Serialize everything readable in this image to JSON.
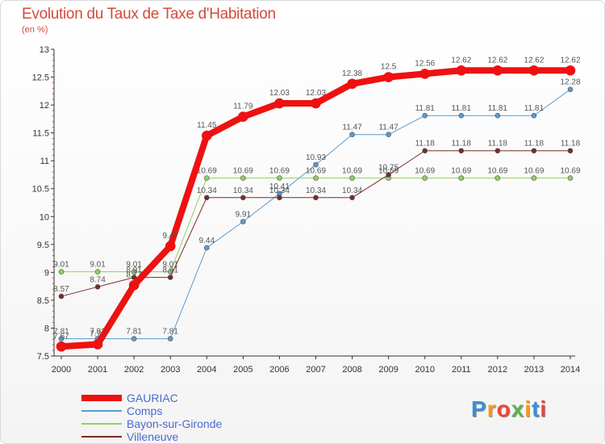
{
  "header": {
    "title": "Evolution du Taux de Taxe d'Habitation",
    "subtitle": "(en %)"
  },
  "logo": {
    "letters": [
      "P",
      "r",
      "o",
      "x",
      "i",
      "t",
      "i"
    ],
    "colors": [
      "#3a8fd8",
      "#f39a1e",
      "#e8473a",
      "#5ab64a",
      "#f39a1e",
      "#3a8fd8",
      "#e8473a"
    ]
  },
  "chart_data": {
    "type": "line",
    "x": [
      "2000",
      "2001",
      "2002",
      "2003",
      "2004",
      "2005",
      "2006",
      "2007",
      "2008",
      "2009",
      "2010",
      "2011",
      "2012",
      "2013",
      "2014"
    ],
    "ylim": [
      7.5,
      13
    ],
    "yticks": [
      "7.5",
      "8",
      "8.5",
      "9",
      "9.5",
      "10",
      "10.5",
      "11",
      "11.5",
      "12",
      "12.5",
      "13"
    ],
    "grid": false,
    "legend_position": "bottom-left",
    "series": [
      {
        "name": "GAURIAC",
        "color": "#ee1111",
        "width": 8,
        "values": [
          7.67,
          7.71,
          8.77,
          9.47,
          11.45,
          11.79,
          12.03,
          12.03,
          12.38,
          12.5,
          12.56,
          12.62,
          12.62,
          12.62,
          12.62
        ],
        "labels": [
          "7.67",
          "7.71",
          "8.77",
          "9.47",
          "11.45",
          "11.79",
          "12.03",
          "12.03",
          "12.38",
          "12.5",
          "12.56",
          "12.62",
          "12.62",
          "12.62",
          "12.62"
        ]
      },
      {
        "name": "Comps",
        "color": "#5a9bd0",
        "width": 1,
        "values": [
          7.81,
          7.81,
          7.81,
          7.81,
          9.44,
          9.91,
          10.41,
          10.93,
          11.47,
          11.47,
          11.81,
          11.81,
          11.81,
          11.81,
          12.28
        ],
        "labels": [
          "7.81",
          "7.81",
          "7.81",
          "7.81",
          "9.44",
          "9.91",
          "10.41",
          "10.93",
          "11.47",
          "11.47",
          "11.81",
          "11.81",
          "11.81",
          "11.81",
          "12.28"
        ]
      },
      {
        "name": "Bayon-sur-Gironde",
        "color": "#90d060",
        "width": 1,
        "values": [
          9.01,
          9.01,
          9.01,
          9.01,
          10.69,
          10.69,
          10.69,
          10.69,
          10.69,
          10.69,
          10.69,
          10.69,
          10.69,
          10.69,
          10.69
        ],
        "labels": [
          "9.01",
          "9.01",
          "9.01",
          "9.01",
          "10.69",
          "10.69",
          "10.69",
          "10.69",
          "10.69",
          "10.69",
          "10.69",
          "10.69",
          "10.69",
          "10.69",
          "10.69"
        ]
      },
      {
        "name": "Villeneuve",
        "color": "#7a2a2a",
        "width": 1,
        "values": [
          8.57,
          8.74,
          8.91,
          8.91,
          10.34,
          10.34,
          10.34,
          10.34,
          10.34,
          10.75,
          11.18,
          11.18,
          11.18,
          11.18,
          11.18
        ],
        "labels": [
          "8.57",
          "8.74",
          "8.91",
          "8.91",
          "10.34",
          "10.34",
          "10.34",
          "10.34",
          "10.34",
          "10.75",
          "11.18",
          "11.18",
          "11.18",
          "11.18",
          "11.18"
        ]
      }
    ]
  }
}
